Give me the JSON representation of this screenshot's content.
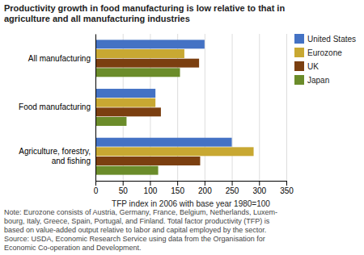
{
  "chart_data": {
    "type": "bar",
    "orientation": "horizontal",
    "title": "Productivity growth in food manufacturing is low relative to that in\nagriculture and all manufacturing industries",
    "categories": [
      "Agriculture, forestry,\nand fishing",
      "Food manufacturing",
      "All manufacturing"
    ],
    "series": [
      {
        "name": "Japan",
        "color": "#6B8C2A",
        "values": [
          115,
          57,
          155
        ]
      },
      {
        "name": "UK",
        "color": "#7B3F10",
        "values": [
          192,
          120,
          190
        ]
      },
      {
        "name": "Eurozone",
        "color": "#C8A832",
        "values": [
          290,
          110,
          163
        ]
      },
      {
        "name": "United States",
        "color": "#4472C4",
        "values": [
          250,
          110,
          200
        ]
      }
    ],
    "xlabel": "TFP index in 2006 with base year 1980=100",
    "xlim": [
      0,
      350
    ],
    "xticks": [
      0,
      50,
      100,
      150,
      200,
      250,
      300,
      350
    ],
    "grid": true,
    "legend": "right",
    "annotations": [
      "Note: Eurozone consists of Austria, Germany, France, Belgium, Netherlands, Luxem-",
      "bourg, Italy, Greece, Spain, Portugal, and Finland. Total factor productivity (TFP) is",
      "based on value-added output relative to labor and capital employed by the sector.",
      "Source: USDA, Economic Research Service using data from the Organisation for",
      "Economic Co-operation and Development."
    ]
  }
}
